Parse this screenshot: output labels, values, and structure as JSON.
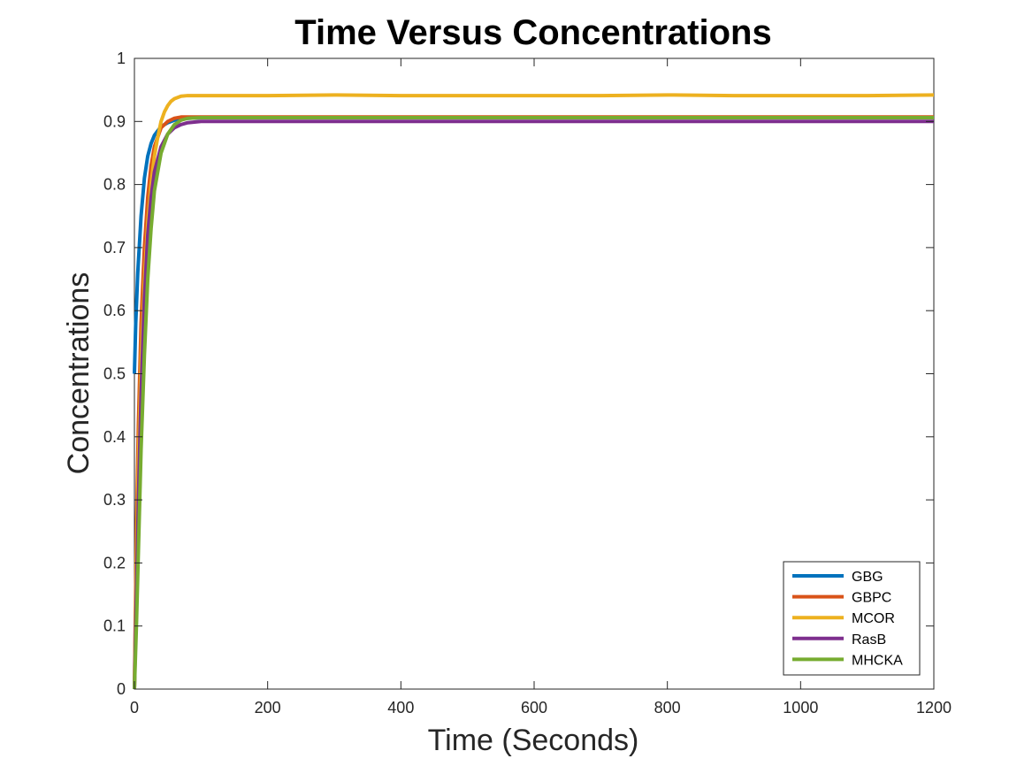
{
  "chart_data": {
    "type": "line",
    "title": "Time Versus Concentrations",
    "xlabel": "Time (Seconds)",
    "ylabel": "Concentrations",
    "xlim": [
      0,
      1200
    ],
    "ylim": [
      0,
      1
    ],
    "xticks": [
      0,
      200,
      400,
      600,
      800,
      1000,
      1200
    ],
    "yticks": [
      0,
      0.1,
      0.2,
      0.3,
      0.4,
      0.5,
      0.6,
      0.7,
      0.8,
      0.9,
      1
    ],
    "xtick_labels": [
      "0",
      "200",
      "400",
      "600",
      "800",
      "1000",
      "1200"
    ],
    "ytick_labels": [
      "0",
      "0.1",
      "0.2",
      "0.3",
      "0.4",
      "0.5",
      "0.6",
      "0.7",
      "0.8",
      "0.9",
      "1"
    ],
    "grid": false,
    "legend_position": "bottom-right",
    "series": [
      {
        "name": "GBG",
        "color": "#0072BD",
        "x": [
          0,
          2,
          5,
          10,
          15,
          20,
          25,
          30,
          40,
          50,
          60,
          80,
          100,
          150,
          200,
          400,
          600,
          800,
          1000,
          1200
        ],
        "y": [
          0.5,
          0.58,
          0.66,
          0.75,
          0.81,
          0.845,
          0.865,
          0.878,
          0.892,
          0.898,
          0.902,
          0.905,
          0.906,
          0.906,
          0.906,
          0.906,
          0.906,
          0.906,
          0.906,
          0.906
        ]
      },
      {
        "name": "GBPC",
        "color": "#D95319",
        "x": [
          0,
          3,
          6,
          10,
          15,
          20,
          25,
          30,
          40,
          50,
          60,
          70,
          80,
          100,
          150,
          200,
          400,
          600,
          800,
          1000,
          1200
        ],
        "y": [
          0.0,
          0.25,
          0.42,
          0.58,
          0.7,
          0.78,
          0.83,
          0.86,
          0.89,
          0.9,
          0.905,
          0.907,
          0.907,
          0.907,
          0.907,
          0.907,
          0.907,
          0.907,
          0.907,
          0.907,
          0.907
        ]
      },
      {
        "name": "MCOR",
        "color": "#EDB120",
        "x": [
          0,
          3,
          6,
          10,
          15,
          20,
          25,
          30,
          35,
          40,
          45,
          50,
          55,
          60,
          70,
          80,
          100,
          150,
          200,
          300,
          400,
          500,
          600,
          700,
          800,
          900,
          1000,
          1100,
          1200
        ],
        "y": [
          0.0,
          0.2,
          0.36,
          0.52,
          0.65,
          0.74,
          0.8,
          0.845,
          0.875,
          0.9,
          0.915,
          0.925,
          0.932,
          0.936,
          0.94,
          0.941,
          0.941,
          0.941,
          0.941,
          0.942,
          0.941,
          0.941,
          0.941,
          0.941,
          0.942,
          0.941,
          0.941,
          0.941,
          0.942
        ]
      },
      {
        "name": "RasB",
        "color": "#7E2F8E",
        "x": [
          0,
          3,
          6,
          10,
          15,
          20,
          25,
          30,
          40,
          50,
          60,
          70,
          80,
          100,
          150,
          200,
          400,
          600,
          800,
          1000,
          1200
        ],
        "y": [
          0.0,
          0.15,
          0.3,
          0.47,
          0.62,
          0.72,
          0.78,
          0.82,
          0.86,
          0.88,
          0.89,
          0.895,
          0.898,
          0.9,
          0.9,
          0.9,
          0.9,
          0.9,
          0.9,
          0.9,
          0.9
        ]
      },
      {
        "name": "MHCKA",
        "color": "#77AC30",
        "x": [
          0,
          3,
          6,
          10,
          15,
          20,
          25,
          30,
          40,
          50,
          60,
          70,
          80,
          100,
          150,
          200,
          400,
          600,
          800,
          1000,
          1200
        ],
        "y": [
          0.0,
          0.1,
          0.22,
          0.38,
          0.53,
          0.65,
          0.73,
          0.79,
          0.85,
          0.88,
          0.895,
          0.902,
          0.905,
          0.906,
          0.906,
          0.906,
          0.906,
          0.906,
          0.906,
          0.906,
          0.906
        ]
      }
    ]
  },
  "colors": {
    "axis": "#262626",
    "background": "#ffffff"
  }
}
